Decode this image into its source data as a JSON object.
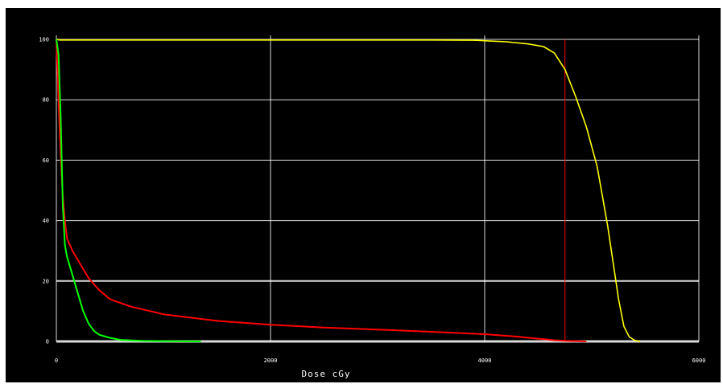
{
  "chart_data": {
    "type": "line",
    "title": "",
    "xlabel": "Dose cGy",
    "ylabel": "",
    "xlim": [
      0,
      6000
    ],
    "ylim": [
      0,
      100
    ],
    "x_ticks": [
      "0",
      "2000",
      "4000",
      "6000"
    ],
    "y_ticks": [
      "0",
      "20",
      "40",
      "60",
      "80",
      "100"
    ],
    "grid": true,
    "background": "#000000",
    "grid_color": "#ffffff",
    "series": [
      {
        "color": "#ffff00",
        "x": [
          0,
          15,
          30,
          500,
          1000,
          2000,
          3000,
          3500,
          3900,
          4200,
          4400,
          4550,
          4650,
          4750,
          4850,
          4950,
          5050,
          5100,
          5150,
          5200,
          5250,
          5300,
          5350,
          5400,
          5450
        ],
        "y": [
          100,
          99.9,
          99.8,
          99.8,
          99.8,
          99.8,
          99.8,
          99.8,
          99.7,
          99.2,
          98.5,
          97.6,
          95.5,
          90,
          81,
          71,
          58,
          48,
          38,
          26,
          14,
          5,
          1.5,
          0.4,
          0
        ]
      },
      {
        "color": "#ff0000",
        "x": [
          0,
          20,
          40,
          60,
          80,
          100,
          150,
          200,
          300,
          400,
          500,
          700,
          1000,
          1500,
          2000,
          2500,
          3000,
          3500,
          4000,
          4300,
          4500,
          4650,
          4750,
          4850,
          4950
        ],
        "y": [
          100,
          80,
          62,
          48,
          40,
          34,
          30,
          27,
          21,
          17,
          14,
          11.5,
          9,
          6.8,
          5.5,
          4.6,
          3.9,
          3.2,
          2.4,
          1.6,
          0.9,
          0.4,
          0.2,
          0.1,
          0
        ]
      },
      {
        "color": "#00ff00",
        "x": [
          0,
          20,
          40,
          60,
          80,
          100,
          150,
          200,
          250,
          300,
          350,
          400,
          500,
          600,
          800,
          1000,
          1350
        ],
        "y": [
          100,
          95,
          75,
          45,
          32,
          28,
          22,
          16,
          10,
          6,
          3.5,
          2.2,
          1.2,
          0.5,
          0.2,
          0.1,
          0
        ]
      }
    ],
    "reference_line": {
      "x": 4750,
      "color": "#ff0000"
    }
  }
}
